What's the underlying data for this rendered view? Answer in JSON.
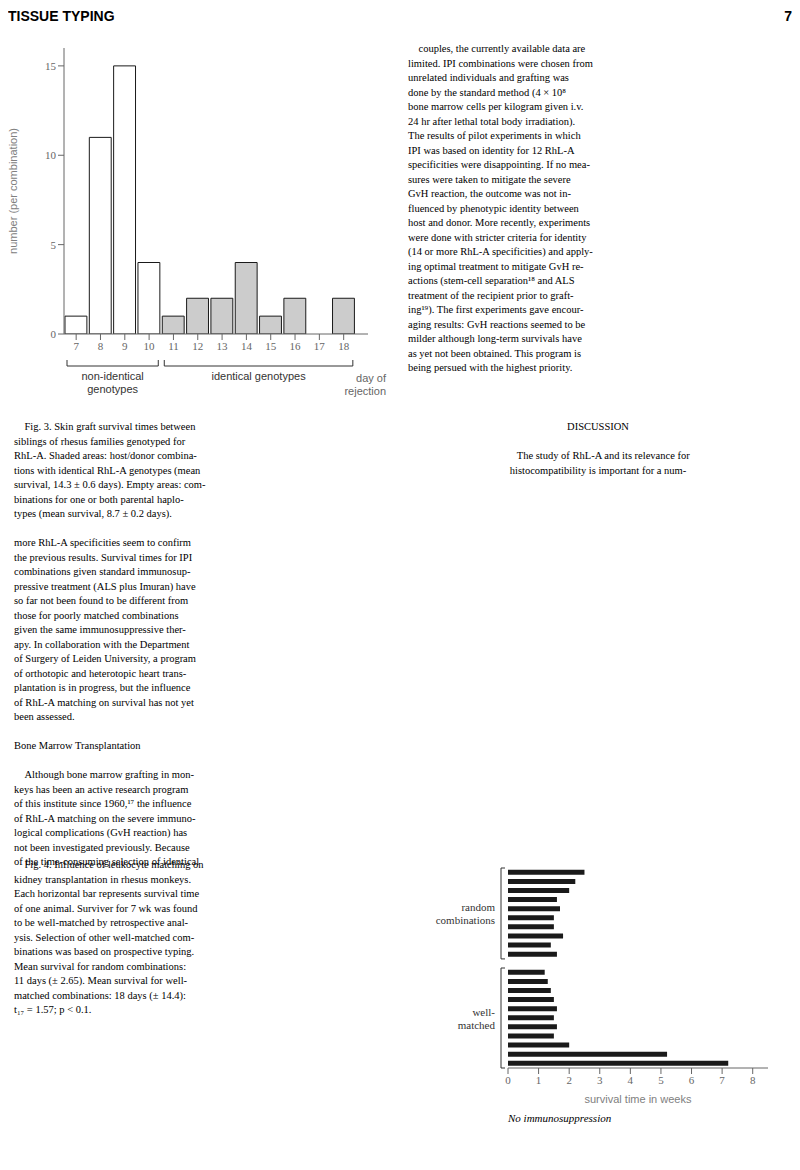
{
  "chart_data": [
    {
      "type": "bar",
      "xlabel": "day of\nrejection",
      "ylabel": "number (per combination)",
      "x": [
        7,
        8,
        9,
        10,
        11,
        12,
        13,
        14,
        15,
        16,
        17,
        18
      ],
      "series": [
        {
          "name": "non-identical\ngenotypes",
          "color": "#ffffff",
          "values": [
            1,
            11,
            15,
            4,
            null,
            null,
            null,
            null,
            null,
            null,
            null,
            null
          ]
        },
        {
          "name": "identical genotypes",
          "color": "#cccccc",
          "values": [
            null,
            null,
            null,
            null,
            1,
            2,
            2,
            4,
            1,
            2,
            0,
            2
          ]
        }
      ],
      "xlim": [
        6.5,
        19
      ],
      "ylim": [
        0,
        16
      ],
      "xticks": [
        7,
        8,
        9,
        10,
        11,
        12,
        13,
        14,
        15,
        16,
        17,
        18
      ],
      "yticks": [
        0,
        5,
        10,
        15
      ],
      "annotations": [
        "TISSUE TYPING",
        "7",
        "    couples, the currently available data are\nlimited. IPI combinations were chosen from\nunrelated individuals and grafting was\ndone by the standard method (4 × 10⁸\nbone marrow cells per kilogram given i.v.\n24 hr after lethal total body irradiation).\nThe results of pilot experiments in which\nIPI was based on identity for 12 RhL-A\nspecificities were disappointing. If no mea-\nsures were taken to mitigate the severe\nGvH reaction, the outcome was not in-\nfluenced by phenotypic identity between\nhost and donor. More recently, experiments\nwere done with stricter criteria for identity\n(14 or more RhL-A specificities) and apply-\ning optimal treatment to mitigate GvH re-\nactions (stem-cell separation¹⁸ and ALS\ntreatment of the recipient prior to graft-\ning¹⁹). The first experiments gave encour-\naging results: GvH reactions seemed to be\nmilder although long-term survivals have\nas yet not been obtained. This program is\nbeing persued with the highest priority.",
        "    Fig. 3. Skin graft survival times between\nsiblings of rhesus families genotyped for\nRhL-A. Shaded areas: host/donor combina-\ntions with identical RhL-A genotypes (mean\nsurvival, 14.3 ± 0.6 days). Empty areas: com-\nbinations for one or both parental haplo-\ntypes (mean survival, 8.7 ± 0.2 days).\n\nmore RhL-A specificities seem to confirm\nthe previous results. Survival times for IPI\ncombinations given standard immunosup-\npressive treatment (ALS plus Imuran) have\nso far not been found to be different from\nthose for poorly matched combinations\ngiven the same immunosuppressive ther-\napy. In collaboration with the Department\nof Surgery of Leiden University, a program\nof orthotopic and heterotopic heart trans-\nplantation is in progress, but the influence\nof RhL-A matching on survival has not yet\nbeen assessed.\n\nBone Marrow Transplantation\n\n    Although bone marrow grafting in mon-\nkeys has been an active research program\nof this institute since 1960,¹⁷ the influence\nof RhL-A matching on the severe immuno-\nlogical complications (GvH reaction) has\nnot been investigated previously. Because\nof the time-consuming selection of identical",
        "DISCUSSION\n\n    The study of RhL-A and its relevance for\nhistocompatibility is important for a num-"
      ]
    },
    {
      "type": "bar",
      "orientation": "horizontal",
      "xlabel": "survival time in weeks",
      "xlim": [
        0,
        8.5
      ],
      "xticks": [
        0,
        1,
        2,
        3,
        4,
        5,
        6,
        7,
        8
      ],
      "tick_labels": "x",
      "series": [
        {
          "name": "random\ncombinations",
          "color": "#1a1a1a",
          "values": [
            1.6,
            1.4,
            1.8,
            1.5,
            1.5,
            1.7,
            1.6,
            2.0,
            2.2,
            2.5
          ]
        },
        {
          "name": "well-\nmatched",
          "color": "#1a1a1a",
          "values": [
            7.2,
            5.2,
            2.0,
            1.5,
            1.6,
            1.5,
            1.6,
            1.5,
            1.4,
            1.3,
            1.2
          ]
        }
      ],
      "annotations": [
        "No immunosuppression",
        "    Fig. 4. Influence of leukocyte matching on\nkidney transplantation in rhesus monkeys.\nEach horizontal bar represents survival time\nof one animal. Surviver for 7 wk was found\nto be well-matched by retrospective anal-\nysis. Selection of other well-matched com-\nbinations was based on prospective typing.\nMean survival for random combinations:\n11 days (± 2.65). Mean survival for well-\nmatched combinations: 18 days (± 14.4):\nt₁₇ = 1.57; p < 0.1."
      ]
    }
  ]
}
